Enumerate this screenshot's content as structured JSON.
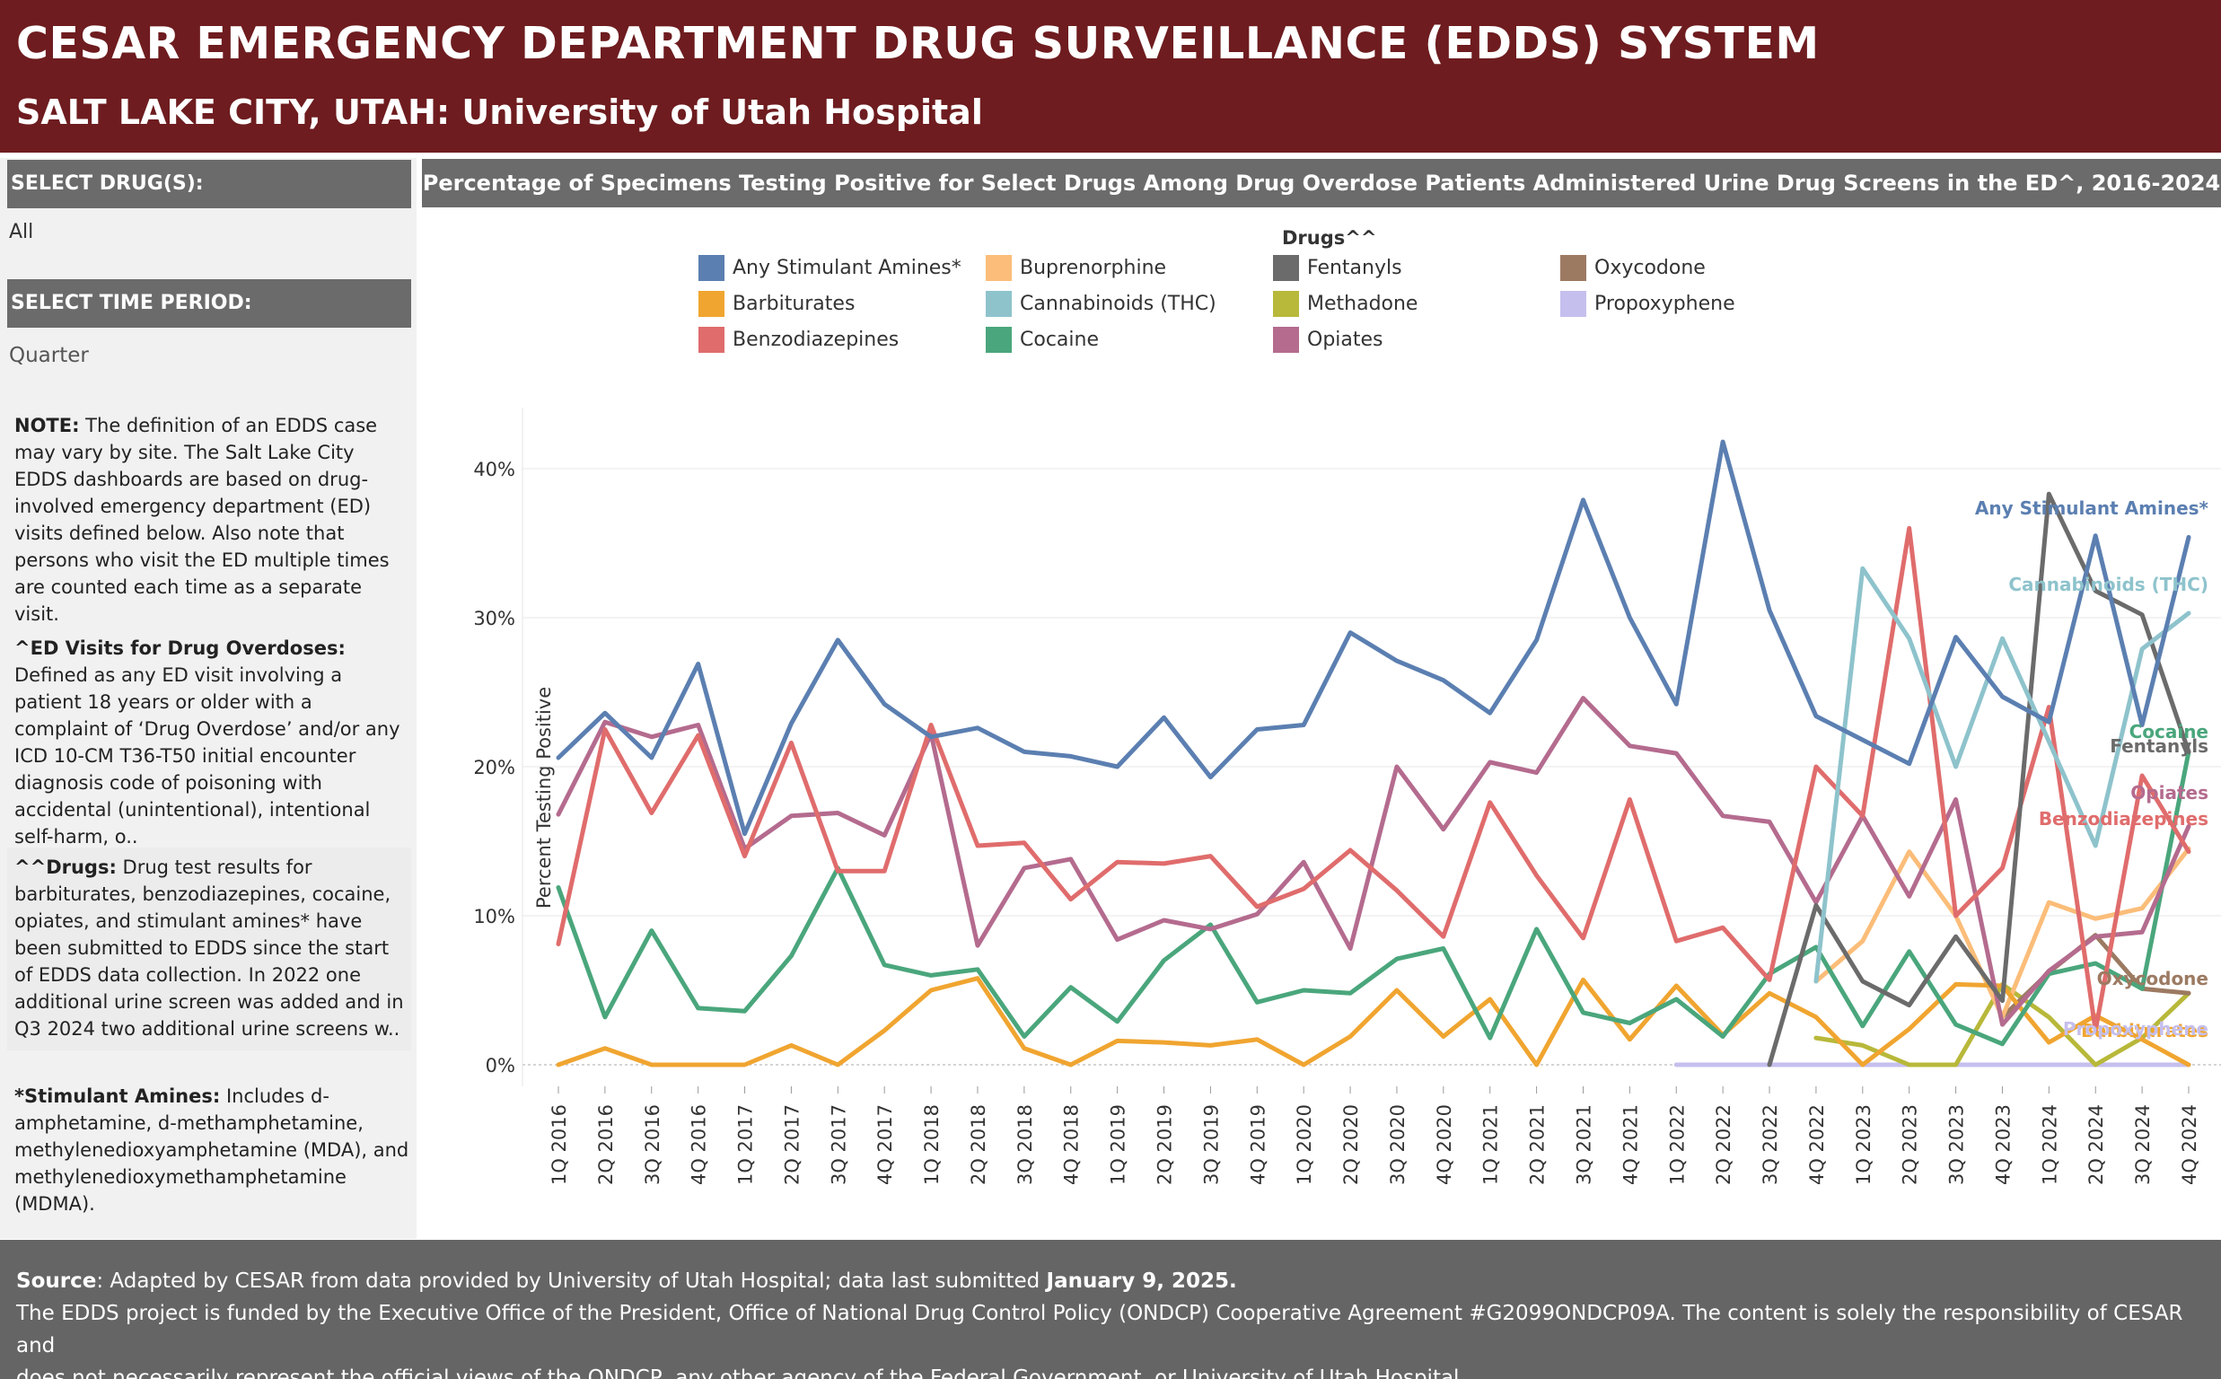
{
  "header": {
    "title": "CESAR EMERGENCY DEPARTMENT DRUG SURVEILLANCE (EDDS) SYSTEM",
    "subtitle": "SALT LAKE CITY, UTAH:  University of Utah Hospital"
  },
  "sidebar": {
    "drug_label": "SELECT DRUG(S):",
    "drug_value": "All",
    "time_label": "SELECT TIME PERIOD:",
    "time_value": "Quarter",
    "note1_bold": "NOTE:",
    "note1_text": " The definition of an EDDS case may vary by site. The Salt Lake City EDDS dashboards are based on drug-involved emergency department (ED) visits defined below. Also note that persons who visit the ED multiple times are counted each time as a separate visit.",
    "note2_bold": "^ED Visits for Drug Overdoses:",
    "note2_text": " Defined as any ED visit involving a patient 18 years or older with a complaint of ‘Drug Overdose’ and/or any ICD 10-CM T36-T50 initial encounter diagnosis code of poisoning with accidental (unintentional), intentional self-harm, o..",
    "note3_bold": "^^Drugs:",
    "note3_text": "   Drug test results for barbiturates, benzodiazepines, cocaine, opiates, and stimulant amines* have been submitted to EDDS since the start of EDDS data collection.  In 2022 one additional urine screen was added and in Q3 2024 two additional urine screens w..",
    "note4_bold": "*Stimulant Amines:",
    "note4_text": " Includes d-amphetamine, d-methamphetamine, methylenedioxyamphetamine (MDA), and methylenedioxymethamphetamine (MDMA)."
  },
  "chart_header": "Percentage of Specimens Testing Positive for Select Drugs Among Drug Overdose Patients Administered Urine Drug Screens in the ED^, 2016-2024",
  "footer": {
    "source_bold": "Source",
    "source_text": ": Adapted by CESAR from data provided by University of Utah Hospital; data last submitted ",
    "source_date": "January 9, 2025.",
    "line2": "The EDDS project is funded by the Executive Office of the President, Office of National Drug Control Policy (ONDCP) Cooperative Agreement #G2099ONDCP09A. The content is solely the responsibility of CESAR and",
    "line3": "does not necessarily represent the official views of the ONDCP, any other agency of the Federal Government, or University of Utah Hospital."
  },
  "chart_data": {
    "type": "line",
    "legend_title": "Drugs^^",
    "ylabel": "Percent Testing Positive",
    "xlabel": "",
    "ylim": [
      0,
      43
    ],
    "yticks": [
      0,
      10,
      20,
      30,
      40
    ],
    "ytick_labels": [
      "0%",
      "10%",
      "20%",
      "30%",
      "40%"
    ],
    "categories": [
      "1Q 2016",
      "2Q 2016",
      "3Q 2016",
      "4Q 2016",
      "1Q 2017",
      "2Q 2017",
      "3Q 2017",
      "4Q 2017",
      "1Q 2018",
      "2Q 2018",
      "3Q 2018",
      "4Q 2018",
      "1Q 2019",
      "2Q 2019",
      "3Q 2019",
      "4Q 2019",
      "1Q 2020",
      "2Q 2020",
      "3Q 2020",
      "4Q 2020",
      "1Q 2021",
      "2Q 2021",
      "3Q 2021",
      "4Q 2021",
      "1Q 2022",
      "2Q 2022",
      "3Q 2022",
      "4Q 2022",
      "1Q 2023",
      "2Q 2023",
      "3Q 2023",
      "4Q 2023",
      "1Q 2024",
      "2Q 2024",
      "3Q 2024",
      "4Q 2024"
    ],
    "series": [
      {
        "name": "Any Stimulant Amines*",
        "color": "#5b7fb1",
        "end_label": "Any Stimulant Amines*",
        "values": [
          20.6,
          23.6,
          20.6,
          26.9,
          15.5,
          22.9,
          28.5,
          24.2,
          22.0,
          22.6,
          21.0,
          20.7,
          20.0,
          23.3,
          19.3,
          22.5,
          22.8,
          29.0,
          27.1,
          25.8,
          23.6,
          28.5,
          37.9,
          30.0,
          24.2,
          41.8,
          30.5,
          23.4,
          21.8,
          20.2,
          28.7,
          24.7,
          23.0,
          35.5,
          22.8,
          35.4
        ]
      },
      {
        "name": "Barbiturates",
        "color": "#f0a530",
        "end_label": "Barbiturates",
        "values": [
          0.0,
          1.1,
          0.0,
          0.0,
          0.0,
          1.3,
          0.0,
          2.3,
          5.0,
          5.8,
          1.1,
          0.0,
          1.6,
          1.5,
          1.3,
          1.7,
          0.0,
          1.9,
          5.0,
          1.9,
          4.4,
          0.0,
          5.7,
          1.7,
          5.3,
          2.0,
          4.8,
          3.2,
          0.0,
          2.4,
          5.4,
          5.3,
          1.5,
          3.3,
          1.7,
          0.0
        ]
      },
      {
        "name": "Benzodiazepines",
        "color": "#e06c6c",
        "end_label": "Benzodiazepines",
        "values": [
          8.1,
          22.5,
          16.9,
          22.1,
          14.0,
          21.6,
          13.0,
          13.0,
          22.8,
          14.7,
          14.9,
          11.1,
          13.6,
          13.5,
          14.0,
          10.6,
          11.8,
          14.4,
          11.7,
          8.6,
          17.6,
          12.7,
          8.5,
          17.8,
          8.3,
          9.2,
          5.7,
          20.0,
          16.7,
          36.0,
          10.0,
          13.2,
          24.0,
          2.3,
          19.4,
          14.3
        ]
      },
      {
        "name": "Buprenorphine",
        "color": "#fbbd79",
        "end_label": "",
        "values": [
          null,
          null,
          null,
          null,
          null,
          null,
          null,
          null,
          null,
          null,
          null,
          null,
          null,
          null,
          null,
          null,
          null,
          null,
          null,
          null,
          null,
          null,
          null,
          null,
          null,
          null,
          null,
          5.6,
          8.3,
          14.3,
          10.0,
          3.2,
          10.9,
          9.8,
          10.5,
          14.5
        ]
      },
      {
        "name": "Cannabinoids (THC)",
        "color": "#8ec3cc",
        "end_label": "Cannabinoids (THC)",
        "values": [
          null,
          null,
          null,
          null,
          null,
          null,
          null,
          null,
          null,
          null,
          null,
          null,
          null,
          null,
          null,
          null,
          null,
          null,
          null,
          null,
          null,
          null,
          null,
          null,
          null,
          null,
          null,
          5.6,
          33.3,
          28.6,
          20.0,
          28.6,
          21.7,
          14.7,
          27.9,
          30.3
        ]
      },
      {
        "name": "Cocaine",
        "color": "#4aa67c",
        "end_label": "Cocaine",
        "values": [
          11.9,
          3.2,
          9.0,
          3.8,
          3.6,
          7.3,
          13.2,
          6.7,
          6.0,
          6.4,
          1.9,
          5.2,
          2.9,
          7.0,
          9.4,
          4.2,
          5.0,
          4.8,
          7.1,
          7.8,
          1.8,
          9.1,
          3.5,
          2.8,
          4.4,
          1.9,
          6.1,
          7.9,
          2.6,
          7.6,
          2.7,
          1.4,
          6.1,
          6.8,
          5.1,
          21.0
        ]
      },
      {
        "name": "Fentanyls",
        "color": "#6b6b6b",
        "end_label": "Fentanyls",
        "values": [
          null,
          null,
          null,
          null,
          null,
          null,
          null,
          null,
          null,
          null,
          null,
          null,
          null,
          null,
          null,
          null,
          null,
          null,
          null,
          null,
          null,
          null,
          null,
          null,
          null,
          null,
          0.0,
          10.7,
          5.6,
          4.0,
          8.6,
          4.3,
          38.3,
          31.8,
          30.2,
          21.0
        ]
      },
      {
        "name": "Methadone",
        "color": "#b8b83a",
        "end_label": "Methadone",
        "values": [
          null,
          null,
          null,
          null,
          null,
          null,
          null,
          null,
          null,
          null,
          null,
          null,
          null,
          null,
          null,
          null,
          null,
          null,
          null,
          null,
          null,
          null,
          null,
          null,
          null,
          null,
          null,
          1.8,
          1.3,
          0.0,
          0.0,
          5.4,
          3.2,
          0.0,
          1.8,
          4.8
        ]
      },
      {
        "name": "Opiates",
        "color": "#b46b8e",
        "end_label": "Opiates",
        "values": [
          16.8,
          23.0,
          22.0,
          22.8,
          14.5,
          16.7,
          16.9,
          15.4,
          22.2,
          8.0,
          13.2,
          13.8,
          8.4,
          9.7,
          9.1,
          10.1,
          13.6,
          7.8,
          20.0,
          15.8,
          20.3,
          19.6,
          24.6,
          21.4,
          20.9,
          16.7,
          16.3,
          10.9,
          16.7,
          11.3,
          17.8,
          2.7,
          6.3,
          8.6,
          8.9,
          16.0
        ]
      },
      {
        "name": "Oxycodone",
        "color": "#9c7a62",
        "end_label": "Oxycodone",
        "values": [
          null,
          null,
          null,
          null,
          null,
          null,
          null,
          null,
          null,
          null,
          null,
          null,
          null,
          null,
          null,
          null,
          null,
          null,
          null,
          null,
          null,
          null,
          null,
          null,
          null,
          null,
          null,
          null,
          null,
          null,
          null,
          3.2,
          6.2,
          8.7,
          5.1,
          4.8
        ]
      },
      {
        "name": "Propoxyphene",
        "color": "#c5bfee",
        "end_label": "Propoxyphene",
        "values": [
          null,
          null,
          null,
          null,
          null,
          null,
          null,
          null,
          null,
          null,
          null,
          null,
          null,
          null,
          null,
          null,
          null,
          null,
          null,
          null,
          null,
          null,
          null,
          null,
          0.0,
          0.0,
          0.0,
          0.0,
          0.0,
          0.0,
          0.0,
          0.0,
          0.0,
          0.0,
          0.0,
          0.0
        ]
      }
    ],
    "legend_order": [
      [
        "Any Stimulant Amines*",
        "Barbiturates",
        "Benzodiazepines"
      ],
      [
        "Buprenorphine",
        "Cannabinoids (THC)",
        "Cocaine"
      ],
      [
        "Fentanyls",
        "Methadone",
        "Opiates"
      ],
      [
        "Oxycodone",
        "Propoxyphene"
      ]
    ]
  }
}
